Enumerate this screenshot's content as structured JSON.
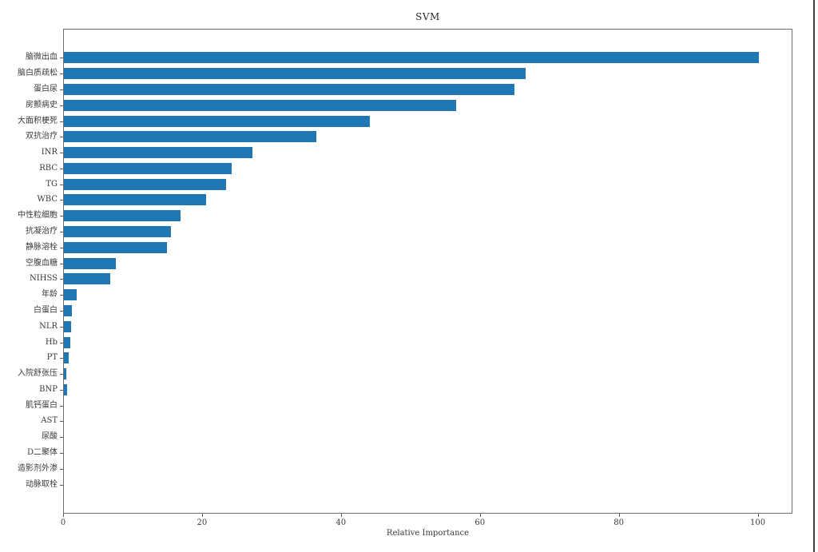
{
  "figure": {
    "background_color": "#ffffff",
    "spine_color": "#6e6e6e",
    "tick_color": "#555555",
    "text_color": "#3a3a3a",
    "window_edge_color": "#3f3f3f"
  },
  "chart_data": {
    "type": "bar",
    "orientation": "horizontal",
    "title": "SVM",
    "xlabel": "Relative Importance",
    "xlim": [
      0,
      105
    ],
    "xticks": [
      0,
      20,
      40,
      60,
      80,
      100
    ],
    "grid": false,
    "legend": "none",
    "bar_color": "#1f77b4",
    "categories": [
      "脑微出血",
      "脑白质疏松",
      "蛋白尿",
      "房颤病史",
      "大面积梗死",
      "双抗治疗",
      "INR",
      "RBC",
      "TG",
      "WBC",
      "中性粒细胞",
      "抗凝治疗",
      "静脉溶栓",
      "空腹血糖",
      "NIHSS",
      "年龄",
      "白蛋白",
      "NLR",
      "Hb",
      "PT",
      "入院舒张压",
      "BNP",
      "肌钙蛋白",
      "AST",
      "尿酸",
      "D二聚体",
      "造影剂外渗",
      "动脉取栓"
    ],
    "values": [
      100,
      66.5,
      64.9,
      56.5,
      44,
      36.3,
      27.1,
      24.2,
      23.3,
      20.5,
      16.8,
      15.4,
      14.8,
      7.5,
      6.7,
      1.85,
      1.2,
      1.05,
      0.9,
      0.7,
      0.35,
      0.45,
      0,
      0,
      0,
      0,
      0,
      0
    ]
  }
}
